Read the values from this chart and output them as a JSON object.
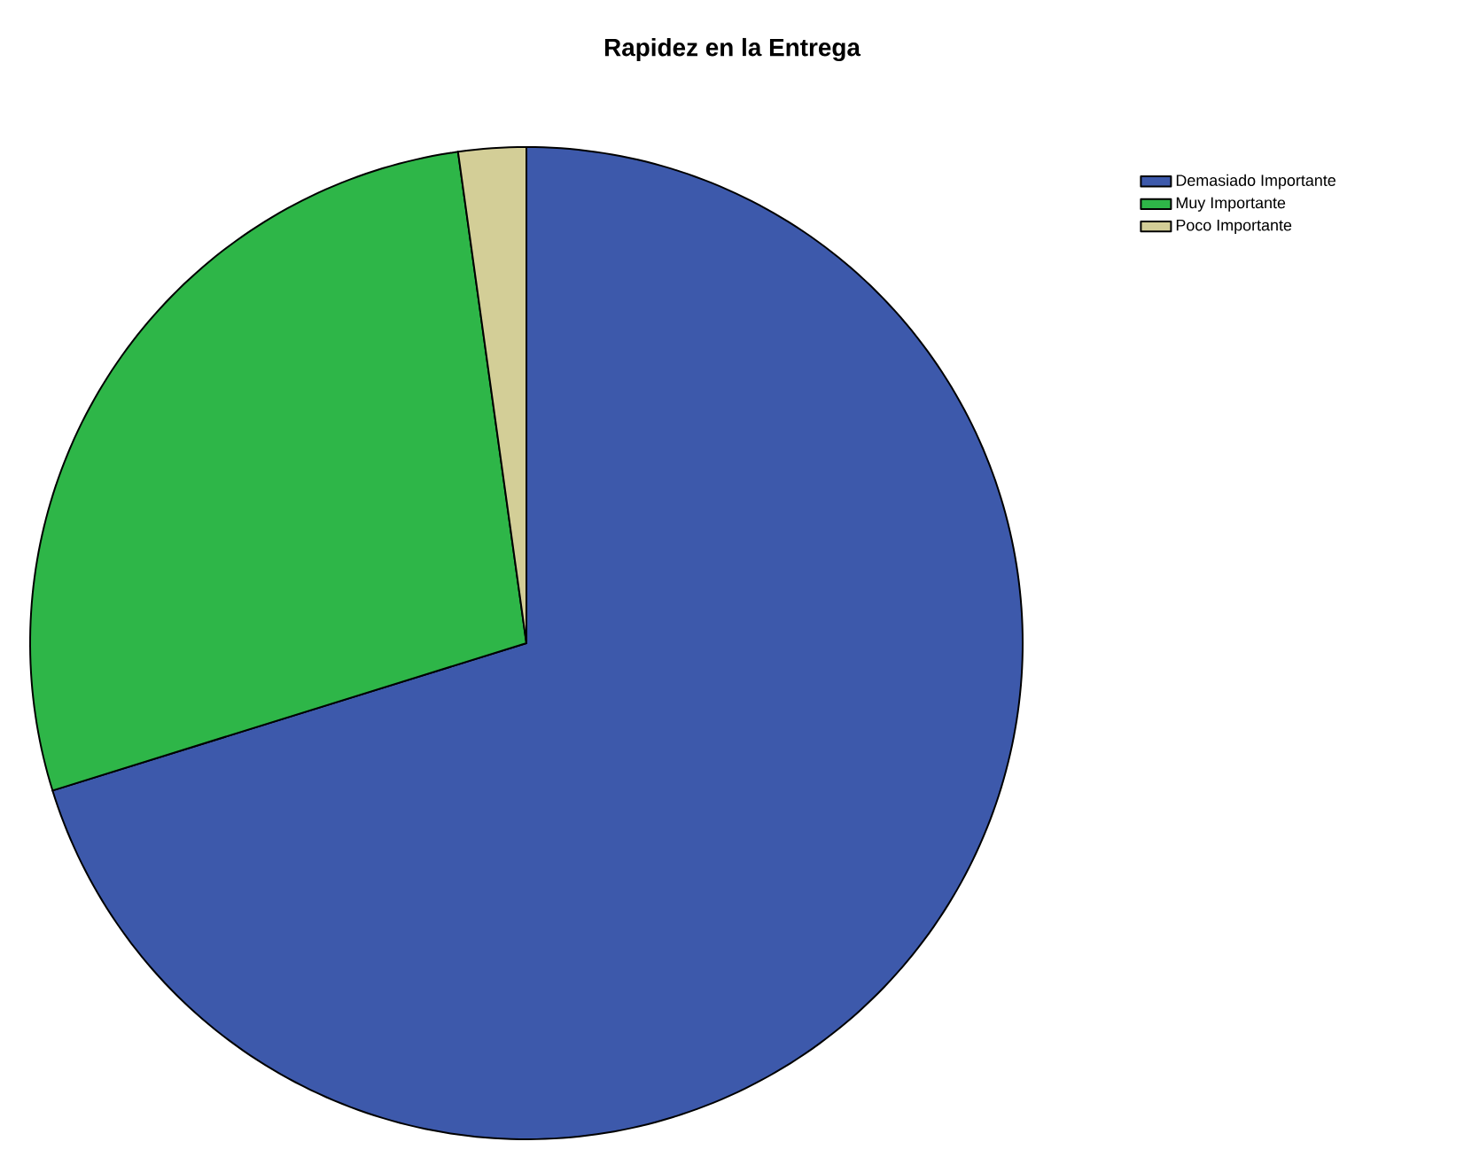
{
  "chart_data": {
    "type": "pie",
    "title": "Rapidez en la Entrega",
    "categories": [
      "Demasiado Importante",
      "Muy Importante",
      "Poco Importante"
    ],
    "values": [
      70.2,
      27.6,
      2.2
    ],
    "colors": [
      "#3d59ab",
      "#2eb648",
      "#d3ce97"
    ],
    "legend": "top right"
  }
}
